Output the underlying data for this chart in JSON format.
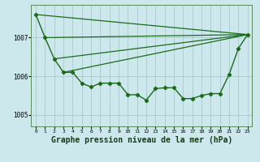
{
  "bg_color": "#cce8ec",
  "grid_color": "#aac8cc",
  "line_color": "#1a6b1a",
  "title": "Graphe pression niveau de la mer (hPa)",
  "title_fontsize": 7.0,
  "xlim": [
    -0.5,
    23.5
  ],
  "ylim": [
    1004.7,
    1007.85
  ],
  "yticks": [
    1005,
    1006,
    1007
  ],
  "xticks": [
    0,
    1,
    2,
    3,
    4,
    5,
    6,
    7,
    8,
    9,
    10,
    11,
    12,
    13,
    14,
    15,
    16,
    17,
    18,
    19,
    20,
    21,
    22,
    23
  ],
  "series": [
    {
      "x": [
        0,
        1,
        2,
        3,
        4,
        5,
        6,
        7,
        8,
        9,
        10,
        11,
        12,
        13,
        14,
        15,
        16,
        17,
        18,
        19,
        20,
        21,
        22,
        23
      ],
      "y": [
        1007.6,
        1007.0,
        1006.45,
        1006.1,
        1006.1,
        1005.82,
        1005.72,
        1005.82,
        1005.82,
        1005.82,
        1005.52,
        1005.52,
        1005.38,
        1005.68,
        1005.7,
        1005.7,
        1005.42,
        1005.42,
        1005.5,
        1005.55,
        1005.55,
        1006.05,
        1006.72,
        1007.08
      ],
      "marker": "D",
      "markersize": 2.2,
      "linewidth": 1.0,
      "has_marker": true
    },
    {
      "x": [
        0,
        23
      ],
      "y": [
        1007.6,
        1007.08
      ],
      "marker": null,
      "markersize": 0,
      "linewidth": 0.9,
      "has_marker": false
    },
    {
      "x": [
        1,
        23
      ],
      "y": [
        1007.0,
        1007.08
      ],
      "marker": null,
      "markersize": 0,
      "linewidth": 0.9,
      "has_marker": false
    },
    {
      "x": [
        2,
        23
      ],
      "y": [
        1006.45,
        1007.08
      ],
      "marker": null,
      "markersize": 0,
      "linewidth": 0.9,
      "has_marker": false
    },
    {
      "x": [
        3,
        23
      ],
      "y": [
        1006.1,
        1007.08
      ],
      "marker": null,
      "markersize": 0,
      "linewidth": 0.9,
      "has_marker": false
    }
  ]
}
